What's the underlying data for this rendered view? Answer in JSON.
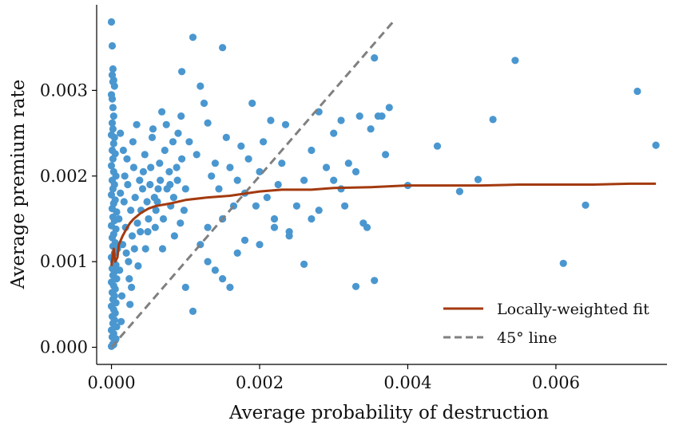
{
  "chart_data": {
    "type": "scatter",
    "title": "",
    "xlabel": "Average probability of destruction",
    "ylabel": "Average premium rate",
    "xlim": [
      -0.0002,
      0.0075
    ],
    "ylim": [
      -0.0002,
      0.004
    ],
    "x_ticks": [
      0.0,
      0.002,
      0.004,
      0.006
    ],
    "x_tick_labels": [
      "0.000",
      "0.002",
      "0.004",
      "0.006"
    ],
    "y_ticks": [
      0.0,
      0.001,
      0.002,
      0.003
    ],
    "y_tick_labels": [
      "0.000",
      "0.001",
      "0.002",
      "0.003"
    ],
    "grid": false,
    "legend_position": "bottom-right",
    "colors": {
      "points": "#4a97d0",
      "fit": "#a33a0f",
      "diagonal": "#808080"
    },
    "series": [
      {
        "name": "",
        "kind": "points",
        "points": [
          [
            0.0,
            0.0038
          ],
          [
            1e-05,
            0.00352
          ],
          [
            2e-05,
            0.00325
          ],
          [
            1e-05,
            0.00318
          ],
          [
            3e-05,
            0.00312
          ],
          [
            2e-05,
            0.0031
          ],
          [
            4e-05,
            0.00305
          ],
          [
            0.0,
            0.00295
          ],
          [
            1e-05,
            0.0029
          ],
          [
            2e-05,
            0.0028
          ],
          [
            3e-05,
            0.0027
          ],
          [
            1e-05,
            0.00262
          ],
          [
            2e-05,
            0.00255
          ],
          [
            0.0,
            0.00248
          ],
          [
            4e-05,
            0.00245
          ],
          [
            3e-05,
            0.00238
          ],
          [
            1e-05,
            0.0023
          ],
          [
            5e-05,
            0.00226
          ],
          [
            2e-05,
            0.0022
          ],
          [
            0.0,
            0.00212
          ],
          [
            3e-05,
            0.00205
          ],
          [
            6e-05,
            0.002
          ],
          [
            1e-05,
            0.00195
          ],
          [
            4e-05,
            0.0019
          ],
          [
            2e-05,
            0.00185
          ],
          [
            0.0,
            0.00178
          ],
          [
            5e-05,
            0.00172
          ],
          [
            3e-05,
            0.00168
          ],
          [
            1e-05,
            0.00162
          ],
          [
            7e-05,
            0.00158
          ],
          [
            2e-05,
            0.00152
          ],
          [
            4e-05,
            0.00148
          ],
          [
            0.0,
            0.00142
          ],
          [
            6e-05,
            0.00138
          ],
          [
            3e-05,
            0.00132
          ],
          [
            1e-05,
            0.00128
          ],
          [
            5e-05,
            0.00122
          ],
          [
            2e-05,
            0.00118
          ],
          [
            8e-05,
            0.00115
          ],
          [
            4e-05,
            0.0011
          ],
          [
            0.0,
            0.00105
          ],
          [
            3e-05,
            0.001
          ],
          [
            6e-05,
            0.00096
          ],
          [
            1e-05,
            0.00092
          ],
          [
            4e-05,
            0.00088
          ],
          [
            2e-05,
            0.00084
          ],
          [
            7e-05,
            0.0008
          ],
          [
            0.0,
            0.00076
          ],
          [
            3e-05,
            0.00072
          ],
          [
            5e-05,
            0.00068
          ],
          [
            1e-05,
            0.00064
          ],
          [
            4e-05,
            0.0006
          ],
          [
            2e-05,
            0.00056
          ],
          [
            6e-05,
            0.00052
          ],
          [
            0.0,
            0.00048
          ],
          [
            3e-05,
            0.00044
          ],
          [
            5e-05,
            0.0004
          ],
          [
            1e-05,
            0.00036
          ],
          [
            4e-05,
            0.00032
          ],
          [
            2e-05,
            0.00028
          ],
          [
            7e-05,
            0.00024
          ],
          [
            0.0,
            0.0002
          ],
          [
            3e-05,
            0.00016
          ],
          [
            1e-05,
            0.00012
          ],
          [
            5e-05,
            8e-05
          ],
          [
            2e-05,
            4e-05
          ],
          [
            0.0,
            1e-05
          ],
          [
            3e-05,
            3e-05
          ],
          [
            6e-05,
            0.0001
          ],
          [
            0.0001,
            0.0015
          ],
          [
            0.00012,
            0.0018
          ],
          [
            0.00015,
            0.0012
          ],
          [
            0.00018,
            0.002
          ],
          [
            0.00011,
            0.0009
          ],
          [
            0.00014,
            0.0006
          ],
          [
            0.00016,
            0.0023
          ],
          [
            0.00019,
            0.0014
          ],
          [
            0.00013,
            0.0003
          ],
          [
            0.00017,
            0.0017
          ],
          [
            0.0002,
            0.0011
          ],
          [
            0.00012,
            0.0025
          ],
          [
            0.00022,
            0.0019
          ],
          [
            0.00024,
            0.0008
          ],
          [
            0.00026,
            0.0016
          ],
          [
            0.00021,
            0.0022
          ],
          [
            0.00028,
            0.0013
          ],
          [
            0.00025,
            0.0005
          ],
          [
            0.0003,
            0.0021
          ],
          [
            0.00023,
            0.001
          ],
          [
            0.00032,
            0.00175
          ],
          [
            0.00029,
            0.0024
          ],
          [
            0.00035,
            0.00145
          ],
          [
            0.00027,
            0.0007
          ],
          [
            0.00038,
            0.00195
          ],
          [
            0.00031,
            0.00115
          ],
          [
            0.0004,
            0.0016
          ],
          [
            0.00034,
            0.0026
          ],
          [
            0.00042,
            0.00185
          ],
          [
            0.00036,
            0.00095
          ],
          [
            0.00045,
            0.00225
          ],
          [
            0.00039,
            0.00135
          ],
          [
            0.00048,
            0.0017
          ],
          [
            0.00043,
            0.00205
          ],
          [
            0.0005,
            0.0015
          ],
          [
            0.00046,
            0.00115
          ],
          [
            0.00052,
            0.0019
          ],
          [
            0.00055,
            0.00245
          ],
          [
            0.00049,
            0.00135
          ],
          [
            0.00058,
            0.00175
          ],
          [
            0.00053,
            0.0021
          ],
          [
            0.0006,
            0.0016
          ],
          [
            0.00056,
            0.00255
          ],
          [
            0.00063,
            0.00185
          ],
          [
            0.00059,
            0.0014
          ],
          [
            0.00065,
            0.00215
          ],
          [
            0.00062,
            0.0017
          ],
          [
            0.00068,
            0.00275
          ],
          [
            0.00066,
            0.00195
          ],
          [
            0.0007,
            0.0015
          ],
          [
            0.00072,
            0.0023
          ],
          [
            0.00069,
            0.00115
          ],
          [
            0.00075,
            0.00185
          ],
          [
            0.00078,
            0.00205
          ],
          [
            0.00074,
            0.0026
          ],
          [
            0.0008,
            0.00165
          ],
          [
            0.00083,
            0.0024
          ],
          [
            0.00079,
            0.0019
          ],
          [
            0.00085,
            0.0013
          ],
          [
            0.00088,
            0.0021
          ],
          [
            0.00084,
            0.00175
          ],
          [
            0.0009,
            0.0025
          ],
          [
            0.00093,
            0.00145
          ],
          [
            0.00089,
            0.00195
          ],
          [
            0.00095,
            0.0022
          ],
          [
            0.00098,
            0.0016
          ],
          [
            0.00094,
            0.0027
          ],
          [
            0.001,
            0.00185
          ],
          [
            0.0011,
            0.00362
          ],
          [
            0.0012,
            0.00305
          ],
          [
            0.0015,
            0.0035
          ],
          [
            0.00095,
            0.00322
          ],
          [
            0.00125,
            0.00285
          ],
          [
            0.0013,
            0.00262
          ],
          [
            0.00105,
            0.0024
          ],
          [
            0.00115,
            0.00225
          ],
          [
            0.0014,
            0.00215
          ],
          [
            0.00135,
            0.002
          ],
          [
            0.00145,
            0.00185
          ],
          [
            0.00155,
            0.00245
          ],
          [
            0.0016,
            0.0021
          ],
          [
            0.00165,
            0.00165
          ],
          [
            0.0017,
            0.00195
          ],
          [
            0.0015,
            0.0015
          ],
          [
            0.00175,
            0.00235
          ],
          [
            0.0018,
            0.0018
          ],
          [
            0.00185,
            0.0022
          ],
          [
            0.0019,
            0.00285
          ],
          [
            0.00195,
            0.00165
          ],
          [
            0.002,
            0.00205
          ],
          [
            0.00205,
            0.0024
          ],
          [
            0.0021,
            0.00175
          ],
          [
            0.00215,
            0.00265
          ],
          [
            0.0022,
            0.0015
          ],
          [
            0.00225,
            0.0019
          ],
          [
            0.0023,
            0.00215
          ],
          [
            0.00235,
            0.0026
          ],
          [
            0.0024,
            0.00135
          ],
          [
            0.0012,
            0.0012
          ],
          [
            0.0013,
            0.001
          ],
          [
            0.0014,
            0.0009
          ],
          [
            0.0015,
            0.0008
          ],
          [
            0.0016,
            0.0007
          ],
          [
            0.0017,
            0.0011
          ],
          [
            0.0018,
            0.00125
          ],
          [
            0.001,
            0.0007
          ],
          [
            0.0011,
            0.00042
          ],
          [
            0.0013,
            0.0014
          ],
          [
            0.002,
            0.0012
          ],
          [
            0.0022,
            0.0014
          ],
          [
            0.0025,
            0.00165
          ],
          [
            0.0026,
            0.00195
          ],
          [
            0.0027,
            0.0023
          ],
          [
            0.0028,
            0.00275
          ],
          [
            0.0029,
            0.0021
          ],
          [
            0.003,
            0.0025
          ],
          [
            0.0031,
            0.00265
          ],
          [
            0.00315,
            0.00165
          ],
          [
            0.0032,
            0.00215
          ],
          [
            0.0033,
            0.00205
          ],
          [
            0.00335,
            0.0027
          ],
          [
            0.0034,
            0.00145
          ],
          [
            0.00345,
            0.0014
          ],
          [
            0.0035,
            0.00255
          ],
          [
            0.00355,
            0.00078
          ],
          [
            0.0033,
            0.00071
          ],
          [
            0.00355,
            0.00338
          ],
          [
            0.0036,
            0.0027
          ],
          [
            0.00365,
            0.0027
          ],
          [
            0.0037,
            0.00225
          ],
          [
            0.00375,
            0.0028
          ],
          [
            0.0026,
            0.00097
          ],
          [
            0.0027,
            0.0015
          ],
          [
            0.0031,
            0.00185
          ],
          [
            0.0024,
            0.0013
          ],
          [
            0.0028,
            0.0016
          ],
          [
            0.003,
            0.00195
          ],
          [
            0.004,
            0.00189
          ],
          [
            0.0044,
            0.00235
          ],
          [
            0.0047,
            0.00182
          ],
          [
            0.00495,
            0.00196
          ],
          [
            0.00515,
            0.00266
          ],
          [
            0.00545,
            0.00335
          ],
          [
            0.0061,
            0.00098
          ],
          [
            0.0064,
            0.00166
          ],
          [
            0.0071,
            0.00299
          ],
          [
            0.00735,
            0.00236
          ]
        ]
      },
      {
        "name": "Locally-weighted fit",
        "kind": "line",
        "style": "solid",
        "x": [
          0.0,
          3e-05,
          5e-05,
          8e-05,
          0.0001,
          0.00015,
          0.0002,
          0.00025,
          0.0003,
          0.0004,
          0.0005,
          0.0006,
          0.0008,
          0.001,
          0.0013,
          0.0016,
          0.002,
          0.0023,
          0.0027,
          0.003,
          0.0035,
          0.004,
          0.0045,
          0.005,
          0.0055,
          0.006,
          0.0065,
          0.007,
          0.00735
        ],
        "y": [
          0.00095,
          0.00115,
          0.001,
          0.00105,
          0.0012,
          0.0013,
          0.00138,
          0.00145,
          0.0015,
          0.00157,
          0.00162,
          0.00165,
          0.00168,
          0.00172,
          0.00175,
          0.00177,
          0.00182,
          0.00184,
          0.00184,
          0.00186,
          0.00187,
          0.00189,
          0.00189,
          0.00189,
          0.0019,
          0.0019,
          0.0019,
          0.00191,
          0.00191
        ]
      },
      {
        "name": "45° line",
        "kind": "line",
        "style": "dashed",
        "x": [
          0.0,
          0.0038
        ],
        "y": [
          0.0,
          0.0038
        ]
      }
    ]
  }
}
